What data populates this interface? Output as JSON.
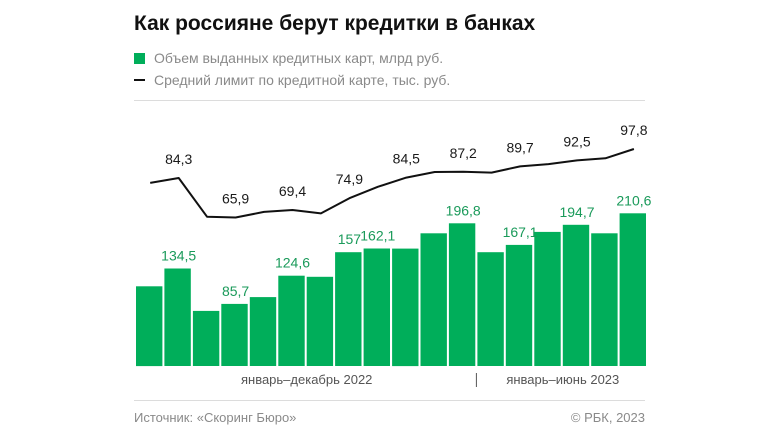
{
  "title": "Как россияне берут кредитки в банках",
  "legend": {
    "bars": "Объем выданных кредитных карт, млрд руб.",
    "line": "Средний лимит по кредитной карте, тыс. руб."
  },
  "footer": {
    "source": "Источник: «Скоринг Бюро»",
    "copyright": "© РБК, 2023"
  },
  "colors": {
    "bar": "#00ae5a",
    "bar_label": "#1a9a5a",
    "line": "#111111",
    "line_label": "#1a1a1a"
  },
  "chart_data": {
    "type": "bar",
    "periods": [
      {
        "label": "январь–декабрь 2022",
        "months": 12
      },
      {
        "label": "январь–июнь 2023",
        "months": 6
      }
    ],
    "series": [
      {
        "name": "Объем выданных кредитных карт, млрд руб.",
        "type": "bar",
        "values": [
          110,
          134.5,
          76,
          85.7,
          95,
          124.6,
          123,
          157,
          162.1,
          162,
          183,
          196.8,
          157,
          167.1,
          185,
          194.7,
          183,
          210.6
        ],
        "labels": [
          null,
          "134,5",
          null,
          "85,7",
          null,
          "124,6",
          null,
          "157",
          "162,1",
          null,
          null,
          "196,8",
          null,
          "167,1",
          null,
          "194,7",
          null,
          "210,6"
        ]
      },
      {
        "name": "Средний лимит по кредитной карте, тыс. руб.",
        "type": "line",
        "values": [
          82,
          84.3,
          66.2,
          65.9,
          68.5,
          69.4,
          67.8,
          74.9,
          80.2,
          84.5,
          87.1,
          87.2,
          86.8,
          89.7,
          90.8,
          92.5,
          93.5,
          97.8
        ],
        "labels": [
          null,
          "84,3",
          null,
          "65,9",
          null,
          "69,4",
          null,
          "74,9",
          null,
          "84,5",
          null,
          "87,2",
          null,
          "89,7",
          null,
          "92,5",
          null,
          "97,8"
        ]
      }
    ]
  }
}
